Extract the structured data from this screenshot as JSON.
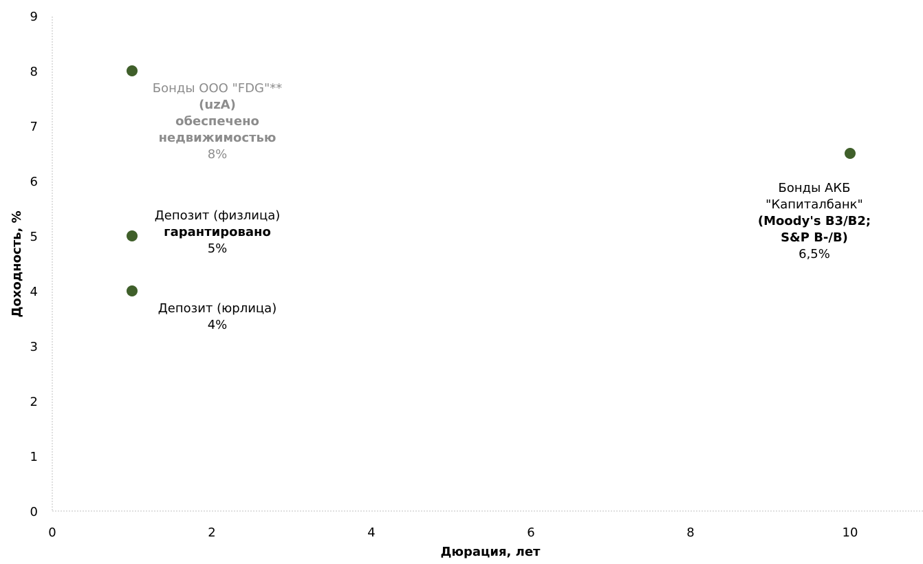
{
  "chart_data": {
    "type": "scatter",
    "xlabel": "Дюрация, лет",
    "ylabel": "Доходность, %",
    "xlim": [
      0,
      11
    ],
    "ylim": [
      0,
      9
    ],
    "xticks": [
      "0",
      "2",
      "4",
      "6",
      "8",
      "10"
    ],
    "yticks": [
      "0",
      "1",
      "2",
      "3",
      "4",
      "5",
      "6",
      "7",
      "8",
      "9"
    ],
    "grid": false,
    "marker_color": "#3f5f2a",
    "points": [
      {
        "x": 1,
        "y": 8,
        "color": "#8c8c8c",
        "label": [
          {
            "text": "Бонды ООО \"FDG\"**",
            "bold": false
          },
          {
            "text": "(uzA)",
            "bold": true
          },
          {
            "text": "обеспечено",
            "bold": true
          },
          {
            "text": "недвижимостью",
            "bold": true
          },
          {
            "text": "8%",
            "bold": false
          }
        ]
      },
      {
        "x": 1,
        "y": 5,
        "color": "#000000",
        "label": [
          {
            "text": "Депозит (физлица)",
            "bold": false
          },
          {
            "text": "гарантировано",
            "bold": true
          },
          {
            "text": "5%",
            "bold": false
          }
        ]
      },
      {
        "x": 1,
        "y": 4,
        "color": "#000000",
        "label": [
          {
            "text": "Депозит (юрлица)",
            "bold": false
          },
          {
            "text": "4%",
            "bold": false
          }
        ]
      },
      {
        "x": 10,
        "y": 6.5,
        "color": "#000000",
        "label": [
          {
            "text": "Бонды АКБ",
            "bold": false
          },
          {
            "text": "\"Капиталбанк\"",
            "bold": false
          },
          {
            "text": "(Moody's B3/B2;",
            "bold": true
          },
          {
            "text": "S&P B-/B)",
            "bold": true
          },
          {
            "text": "6,5%",
            "bold": false
          }
        ]
      }
    ]
  }
}
